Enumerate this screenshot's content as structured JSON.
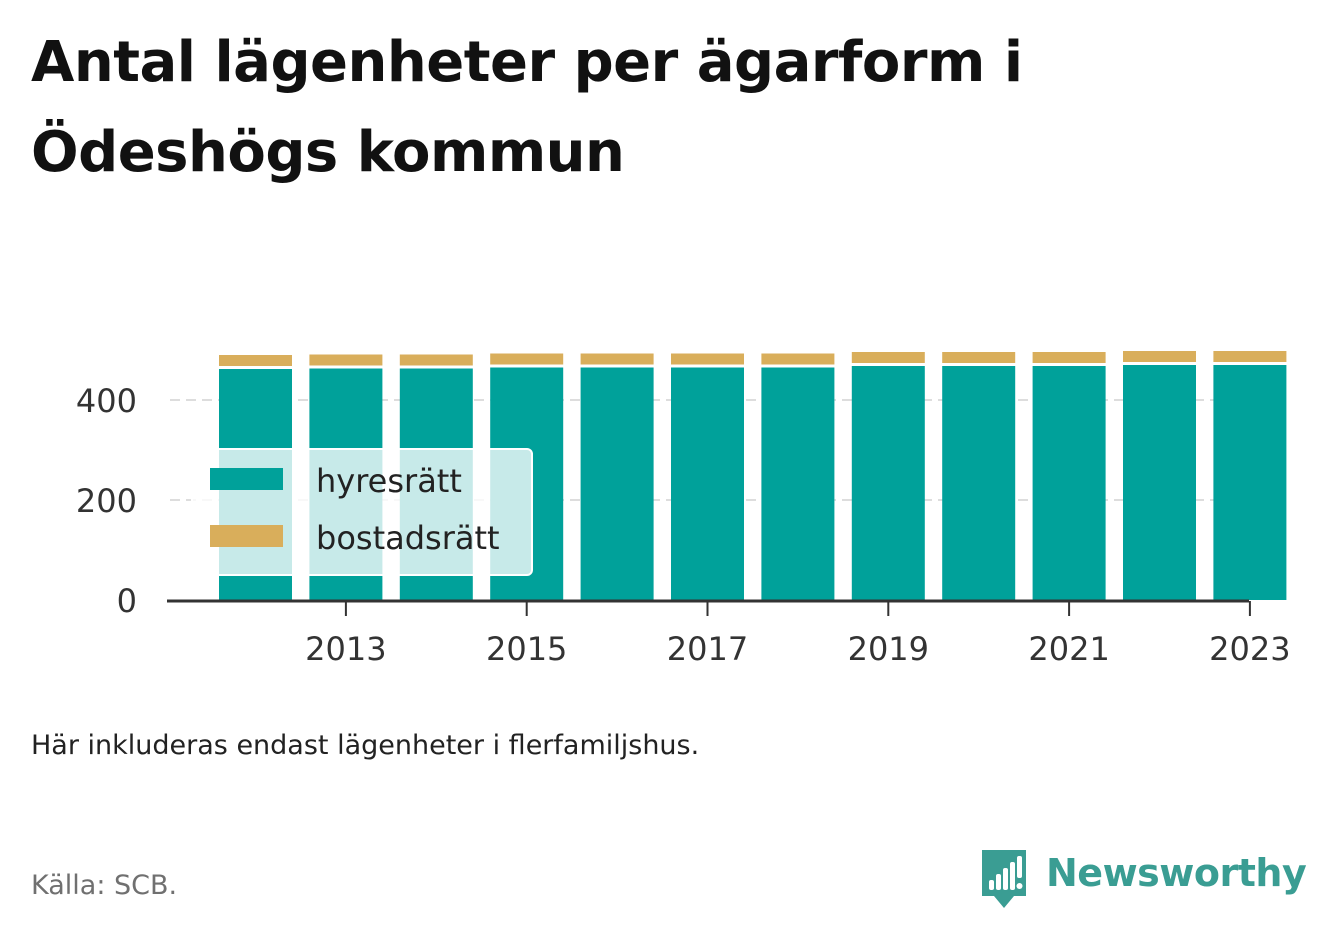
{
  "title_line1": "Antal lägenheter per ägarform i",
  "title_line2": "Ödeshögs kommun",
  "note": "Här inkluderas endast lägenheter i flerfamiljshus.",
  "source": "Källa: SCB.",
  "brand": {
    "name": "Newsworthy",
    "icon": "bar-chart-speech-bubble-icon",
    "color": "#3a9d93"
  },
  "chart_data": {
    "type": "bar",
    "stacked": true,
    "categories": [
      "2012",
      "2013",
      "2014",
      "2015",
      "2016",
      "2017",
      "2018",
      "2019",
      "2020",
      "2021",
      "2022",
      "2023"
    ],
    "x_tick_labels": [
      "2013",
      "2015",
      "2017",
      "2019",
      "2021",
      "2023"
    ],
    "y_ticks": [
      0,
      200,
      400
    ],
    "ylim": [
      0,
      500
    ],
    "grid": true,
    "legend_position": "center-left",
    "series": [
      {
        "name": "hyresrätt",
        "color": "#00a19a",
        "values": [
          462,
          463,
          463,
          465,
          465,
          465,
          465,
          468,
          468,
          468,
          470,
          470
        ]
      },
      {
        "name": "bostadsrätt",
        "color": "#d9ae5b",
        "values": [
          22,
          22,
          22,
          22,
          22,
          22,
          22,
          22,
          22,
          22,
          22,
          22
        ]
      }
    ]
  }
}
